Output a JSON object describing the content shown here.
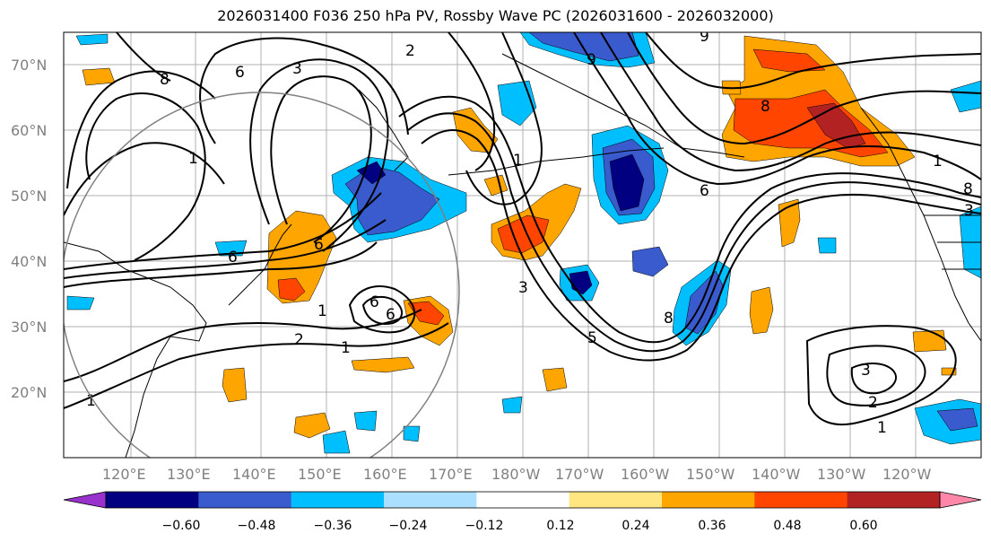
{
  "title": "2026031400 F036 250 hPa PV, Rossby Wave PC (2026031600 - 2026032000)",
  "map": {
    "latitude_labels": [
      "70°N",
      "60°N",
      "50°N",
      "40°N",
      "30°N",
      "20°N"
    ],
    "longitude_labels": [
      "120°E",
      "130°E",
      "140°E",
      "150°E",
      "160°E",
      "170°E",
      "180°W",
      "170°W",
      "160°W",
      "150°W",
      "140°W",
      "130°W",
      "120°W"
    ],
    "contour_labels": [
      "8",
      "6",
      "3",
      "2",
      "1",
      "6",
      "6",
      "1",
      "6",
      "2",
      "1",
      "1",
      "6",
      "3",
      "5",
      "1",
      "8",
      "3",
      "8",
      "9",
      "6",
      "3",
      "2",
      "1",
      "1",
      "9",
      "8"
    ],
    "reference_circle": true
  },
  "colorbar": {
    "tick_labels": [
      "−0.60",
      "−0.48",
      "−0.36",
      "−0.24",
      "−0.12",
      "0.12",
      "0.24",
      "0.36",
      "0.48",
      "0.60"
    ],
    "colors": [
      "#9932cc",
      "#000080",
      "#3a5bcd",
      "#00bfff",
      "#aadfff",
      "#ffffff",
      "#ffe680",
      "#ffa500",
      "#ff4500",
      "#b22222",
      "#ff88aa"
    ]
  },
  "anomaly_colors": {
    "neg_weak": "#aadfff",
    "neg_mod": "#00bfff",
    "neg_strong": "#3a5bcd",
    "neg_max": "#000080",
    "pos_weak": "#ffe680",
    "pos_mod": "#ffa500",
    "pos_strong": "#ff4500",
    "pos_max": "#b22222"
  }
}
